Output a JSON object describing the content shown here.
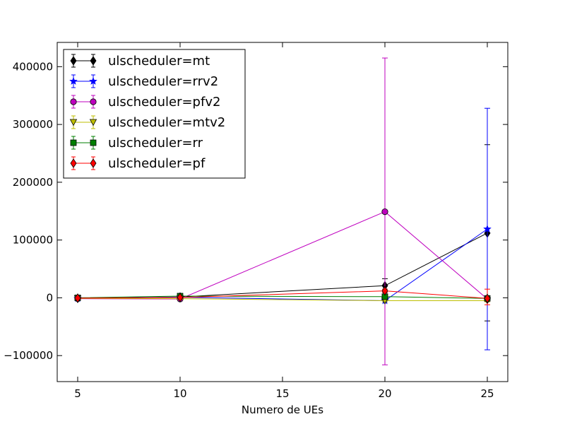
{
  "chart_data": {
    "type": "line",
    "title": "",
    "xlabel": "Numero de UEs",
    "ylabel": "",
    "xlim": [
      4,
      26
    ],
    "ylim": [
      -145000,
      442000
    ],
    "x_ticks": [
      5,
      10,
      15,
      20,
      25
    ],
    "y_ticks": [
      -100000,
      0,
      100000,
      200000,
      300000,
      400000
    ],
    "y_tick_labels": [
      "−100000",
      "0",
      "100000",
      "200000",
      "300000",
      "400000"
    ],
    "grid": false,
    "legend_position": "top-left",
    "series": [
      {
        "name": "ulscheduler=mt",
        "color": "#000000",
        "marker": "diamond",
        "x": [
          5,
          10,
          20,
          25
        ],
        "y": [
          -1000,
          1500,
          21000,
          112000
        ],
        "yerr_low": [
          -3000,
          -1000,
          9000,
          -40000
        ],
        "yerr_high": [
          1000,
          4000,
          33000,
          265000
        ]
      },
      {
        "name": "ulscheduler=rrv2",
        "color": "#0000ff",
        "marker": "star",
        "x": [
          5,
          10,
          20,
          25
        ],
        "y": [
          -1000,
          1000,
          -5000,
          119000
        ],
        "yerr_low": [
          -3000,
          -1000,
          -7000,
          -90000
        ],
        "yerr_high": [
          1000,
          3000,
          -3000,
          328000
        ]
      },
      {
        "name": "ulscheduler=pfv2",
        "color": "#bf00bf",
        "marker": "circle",
        "x": [
          5,
          10,
          20,
          25
        ],
        "y": [
          -1500,
          -2000,
          149000,
          -2000
        ],
        "yerr_low": [
          -3000,
          -4000,
          -116000,
          -6000
        ],
        "yerr_high": [
          0,
          0,
          415000,
          2000
        ]
      },
      {
        "name": "ulscheduler=mtv2",
        "color": "#bfbf00",
        "marker": "triangle-down",
        "x": [
          5,
          10,
          20,
          25
        ],
        "y": [
          -1000,
          -1500,
          -5000,
          -5000
        ],
        "yerr_low": [
          -2500,
          -3000,
          -7000,
          -7000
        ],
        "yerr_high": [
          500,
          0,
          -3000,
          -3000
        ]
      },
      {
        "name": "ulscheduler=rr",
        "color": "#007f00",
        "marker": "square",
        "x": [
          5,
          10,
          20,
          25
        ],
        "y": [
          0,
          3000,
          2000,
          -1000
        ],
        "yerr_low": [
          -2000,
          1000,
          0,
          -3000
        ],
        "yerr_high": [
          2000,
          5000,
          4000,
          1000
        ]
      },
      {
        "name": "ulscheduler=pf",
        "color": "#ff0000",
        "marker": "diamond",
        "x": [
          5,
          10,
          20,
          25
        ],
        "y": [
          -500,
          500,
          12000,
          -1000
        ],
        "yerr_low": [
          -2500,
          -1500,
          9000,
          -12000
        ],
        "yerr_high": [
          1500,
          2500,
          15000,
          15000
        ]
      }
    ]
  }
}
